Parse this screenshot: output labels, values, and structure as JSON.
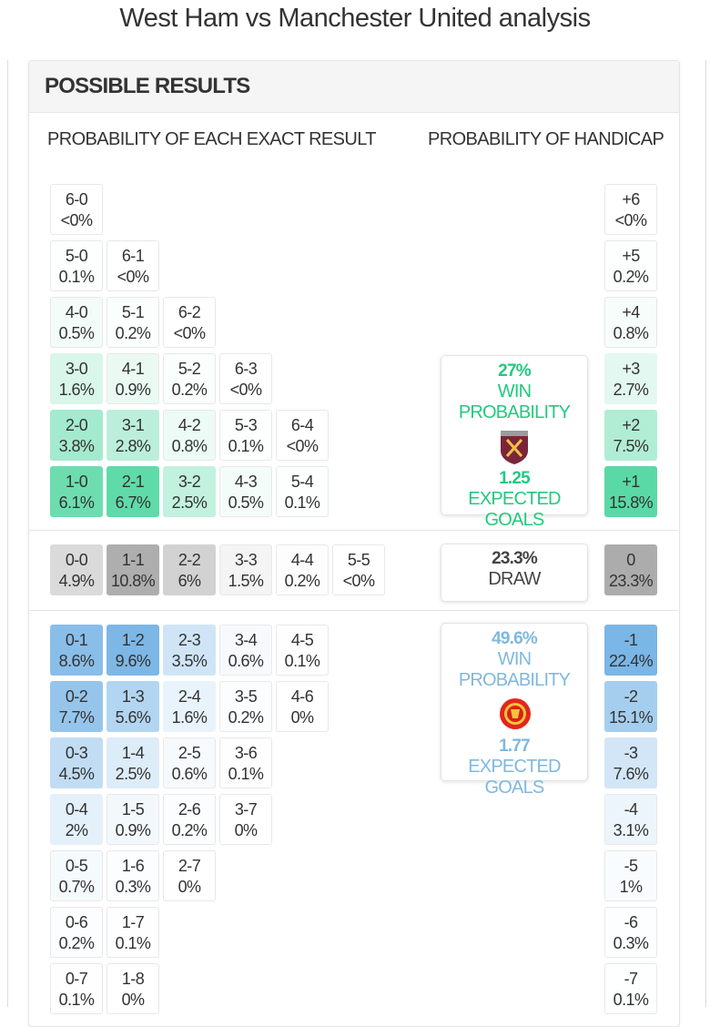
{
  "page_title": "West Ham vs Manchester United analysis",
  "section_title": "POSSIBLE RESULTS",
  "exact_label": "PROBABILITY OF EACH EXACT RESULT",
  "handicap_label": "PROBABILITY OF HANDICAP",
  "colors": {
    "home": "#4fd6a0",
    "draw": "#a8a8a8",
    "away": "#6fb0e4",
    "home_text": "#22c97f",
    "away_text": "#7fb8e0"
  },
  "home_results": [
    [
      {
        "score": "6-0",
        "pct": "<0%"
      }
    ],
    [
      {
        "score": "5-0",
        "pct": "0.1%"
      },
      {
        "score": "6-1",
        "pct": "<0%"
      }
    ],
    [
      {
        "score": "4-0",
        "pct": "0.5%"
      },
      {
        "score": "5-1",
        "pct": "0.2%"
      },
      {
        "score": "6-2",
        "pct": "<0%"
      }
    ],
    [
      {
        "score": "3-0",
        "pct": "1.6%"
      },
      {
        "score": "4-1",
        "pct": "0.9%"
      },
      {
        "score": "5-2",
        "pct": "0.2%"
      },
      {
        "score": "6-3",
        "pct": "<0%"
      }
    ],
    [
      {
        "score": "2-0",
        "pct": "3.8%"
      },
      {
        "score": "3-1",
        "pct": "2.8%"
      },
      {
        "score": "4-2",
        "pct": "0.8%"
      },
      {
        "score": "5-3",
        "pct": "0.1%"
      },
      {
        "score": "6-4",
        "pct": "<0%"
      }
    ],
    [
      {
        "score": "1-0",
        "pct": "6.1%"
      },
      {
        "score": "2-1",
        "pct": "6.7%"
      },
      {
        "score": "3-2",
        "pct": "2.5%"
      },
      {
        "score": "4-3",
        "pct": "0.5%"
      },
      {
        "score": "5-4",
        "pct": "0.1%"
      }
    ]
  ],
  "draw_results": [
    [
      {
        "score": "0-0",
        "pct": "4.9%"
      },
      {
        "score": "1-1",
        "pct": "10.8%"
      },
      {
        "score": "2-2",
        "pct": "6%"
      },
      {
        "score": "3-3",
        "pct": "1.5%"
      },
      {
        "score": "4-4",
        "pct": "0.2%"
      },
      {
        "score": "5-5",
        "pct": "<0%"
      }
    ]
  ],
  "away_results": [
    [
      {
        "score": "0-1",
        "pct": "8.6%"
      },
      {
        "score": "1-2",
        "pct": "9.6%"
      },
      {
        "score": "2-3",
        "pct": "3.5%"
      },
      {
        "score": "3-4",
        "pct": "0.6%"
      },
      {
        "score": "4-5",
        "pct": "0.1%"
      }
    ],
    [
      {
        "score": "0-2",
        "pct": "7.7%"
      },
      {
        "score": "1-3",
        "pct": "5.6%"
      },
      {
        "score": "2-4",
        "pct": "1.6%"
      },
      {
        "score": "3-5",
        "pct": "0.2%"
      },
      {
        "score": "4-6",
        "pct": "0%"
      }
    ],
    [
      {
        "score": "0-3",
        "pct": "4.5%"
      },
      {
        "score": "1-4",
        "pct": "2.5%"
      },
      {
        "score": "2-5",
        "pct": "0.6%"
      },
      {
        "score": "3-6",
        "pct": "0.1%"
      }
    ],
    [
      {
        "score": "0-4",
        "pct": "2%"
      },
      {
        "score": "1-5",
        "pct": "0.9%"
      },
      {
        "score": "2-6",
        "pct": "0.2%"
      },
      {
        "score": "3-7",
        "pct": "0%"
      }
    ],
    [
      {
        "score": "0-5",
        "pct": "0.7%"
      },
      {
        "score": "1-6",
        "pct": "0.3%"
      },
      {
        "score": "2-7",
        "pct": "0%"
      }
    ],
    [
      {
        "score": "0-6",
        "pct": "0.2%"
      },
      {
        "score": "1-7",
        "pct": "0.1%"
      }
    ],
    [
      {
        "score": "0-7",
        "pct": "0.1%"
      },
      {
        "score": "1-8",
        "pct": "0%"
      }
    ]
  ],
  "handicap": [
    {
      "line": "+6",
      "pct": "<0%",
      "side": "home"
    },
    {
      "line": "+5",
      "pct": "0.2%",
      "side": "home"
    },
    {
      "line": "+4",
      "pct": "0.8%",
      "side": "home"
    },
    {
      "line": "+3",
      "pct": "2.7%",
      "side": "home"
    },
    {
      "line": "+2",
      "pct": "7.5%",
      "side": "home"
    },
    {
      "line": "+1",
      "pct": "15.8%",
      "side": "home"
    },
    {
      "line": "0",
      "pct": "23.3%",
      "side": "draw"
    },
    {
      "line": "-1",
      "pct": "22.4%",
      "side": "away"
    },
    {
      "line": "-2",
      "pct": "15.1%",
      "side": "away"
    },
    {
      "line": "-3",
      "pct": "7.6%",
      "side": "away"
    },
    {
      "line": "-4",
      "pct": "3.1%",
      "side": "away"
    },
    {
      "line": "-5",
      "pct": "1%",
      "side": "away"
    },
    {
      "line": "-6",
      "pct": "0.3%",
      "side": "away"
    },
    {
      "line": "-7",
      "pct": "0.1%",
      "side": "away"
    }
  ],
  "home_summary": {
    "win_pct": "27%",
    "win_label": "WIN PROBABILITY",
    "crest": "west-ham-crest",
    "xg": "1.25",
    "xg_label": "EXPECTED GOALS"
  },
  "draw_summary": {
    "pct": "23.3%",
    "label": "DRAW"
  },
  "away_summary": {
    "win_pct": "49.6%",
    "win_label": "WIN PROBABILITY",
    "crest": "manchester-united-crest",
    "xg": "1.77",
    "xg_label": "EXPECTED GOALS"
  }
}
